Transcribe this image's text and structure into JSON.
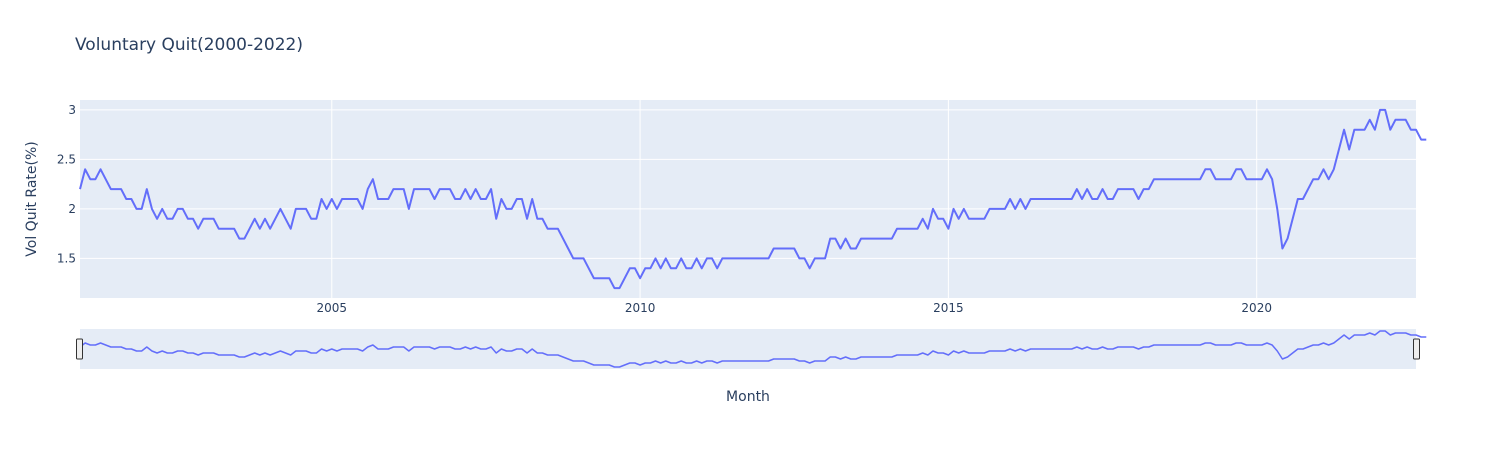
{
  "chart_data": {
    "type": "line",
    "title": "Voluntary Quit(2000-2022)",
    "xlabel": "Month",
    "ylabel": "Vol Quit Rate(%)",
    "x_range": [
      "2000-12",
      "2022-08"
    ],
    "y_range": [
      1.1,
      3.1
    ],
    "y_ticks": [
      1.5,
      2,
      2.5,
      3
    ],
    "y_tick_labels": [
      "1.5",
      "2",
      "2.5",
      "3"
    ],
    "x_ticks": [
      "2005-01",
      "2010-01",
      "2015-01",
      "2020-01"
    ],
    "x_tick_labels": [
      "2005",
      "2010",
      "2015",
      "2020"
    ],
    "grid": true,
    "rangeslider": true,
    "colors": {
      "line": "#636efa",
      "plot_bg": "#e5ecf6",
      "grid": "#ffffff",
      "text": "#2a3f5f"
    },
    "series": [
      {
        "x_start": "2000-12",
        "frequency": "monthly",
        "values": [
          2.2,
          2.4,
          2.3,
          2.3,
          2.4,
          2.3,
          2.2,
          2.2,
          2.2,
          2.1,
          2.1,
          2.0,
          2.0,
          2.2,
          2.0,
          1.9,
          2.0,
          1.9,
          1.9,
          2.0,
          2.0,
          1.9,
          1.9,
          1.8,
          1.9,
          1.9,
          1.9,
          1.8,
          1.8,
          1.8,
          1.8,
          1.7,
          1.7,
          1.8,
          1.9,
          1.8,
          1.9,
          1.8,
          1.9,
          2.0,
          1.9,
          1.8,
          2.0,
          2.0,
          2.0,
          1.9,
          1.9,
          2.1,
          2.0,
          2.1,
          2.0,
          2.1,
          2.1,
          2.1,
          2.1,
          2.0,
          2.2,
          2.3,
          2.1,
          2.1,
          2.1,
          2.2,
          2.2,
          2.2,
          2.0,
          2.2,
          2.2,
          2.2,
          2.2,
          2.1,
          2.2,
          2.2,
          2.2,
          2.1,
          2.1,
          2.2,
          2.1,
          2.2,
          2.1,
          2.1,
          2.2,
          1.9,
          2.1,
          2.0,
          2.0,
          2.1,
          2.1,
          1.9,
          2.1,
          1.9,
          1.9,
          1.8,
          1.8,
          1.8,
          1.7,
          1.6,
          1.5,
          1.5,
          1.5,
          1.4,
          1.3,
          1.3,
          1.3,
          1.3,
          1.2,
          1.2,
          1.3,
          1.4,
          1.4,
          1.3,
          1.4,
          1.4,
          1.5,
          1.4,
          1.5,
          1.4,
          1.4,
          1.5,
          1.4,
          1.4,
          1.5,
          1.4,
          1.5,
          1.5,
          1.4,
          1.5,
          1.5,
          1.5,
          1.5,
          1.5,
          1.5,
          1.5,
          1.5,
          1.5,
          1.5,
          1.6,
          1.6,
          1.6,
          1.6,
          1.6,
          1.5,
          1.5,
          1.4,
          1.5,
          1.5,
          1.5,
          1.7,
          1.7,
          1.6,
          1.7,
          1.6,
          1.6,
          1.7,
          1.7,
          1.7,
          1.7,
          1.7,
          1.7,
          1.7,
          1.8,
          1.8,
          1.8,
          1.8,
          1.8,
          1.9,
          1.8,
          2.0,
          1.9,
          1.9,
          1.8,
          2.0,
          1.9,
          2.0,
          1.9,
          1.9,
          1.9,
          1.9,
          2.0,
          2.0,
          2.0,
          2.0,
          2.1,
          2.0,
          2.1,
          2.0,
          2.1,
          2.1,
          2.1,
          2.1,
          2.1,
          2.1,
          2.1,
          2.1,
          2.1,
          2.2,
          2.1,
          2.2,
          2.1,
          2.1,
          2.2,
          2.1,
          2.1,
          2.2,
          2.2,
          2.2,
          2.2,
          2.1,
          2.2,
          2.2,
          2.3,
          2.3,
          2.3,
          2.3,
          2.3,
          2.3,
          2.3,
          2.3,
          2.3,
          2.3,
          2.4,
          2.4,
          2.3,
          2.3,
          2.3,
          2.3,
          2.4,
          2.4,
          2.3,
          2.3,
          2.3,
          2.3,
          2.4,
          2.3,
          2.0,
          1.6,
          1.7,
          1.9,
          2.1,
          2.1,
          2.2,
          2.3,
          2.3,
          2.4,
          2.3,
          2.4,
          2.6,
          2.8,
          2.6,
          2.8,
          2.8,
          2.8,
          2.9,
          2.8,
          3.0,
          3.0,
          2.8,
          2.9,
          2.9,
          2.9,
          2.8,
          2.8,
          2.7,
          2.7
        ]
      }
    ]
  }
}
